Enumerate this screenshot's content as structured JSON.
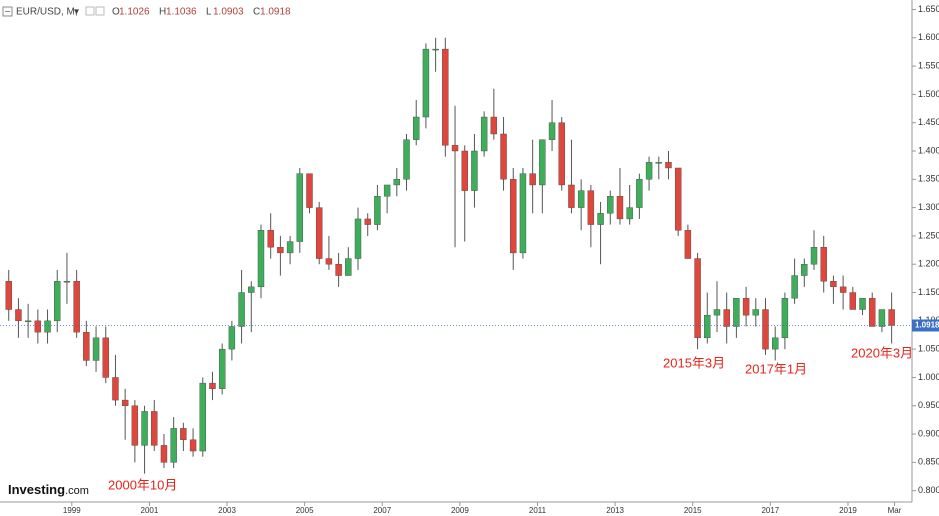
{
  "header": {
    "symbol": "EUR/USD, M,",
    "ohlc": [
      {
        "label": "O",
        "value": 1.1026
      },
      {
        "label": "H",
        "value": 1.1036
      },
      {
        "label": "L",
        "value": 1.0903
      },
      {
        "label": "C",
        "value": 1.0918
      }
    ]
  },
  "watermark": {
    "brand": "Investing",
    ".com": ".com"
  },
  "chart_data": {
    "type": "candlestick",
    "up_color": "#3fae5a",
    "down_color": "#e0473c",
    "xlim": [
      1997.15,
      2020.65
    ],
    "xticks": [
      1999,
      2001,
      2003,
      2005,
      2007,
      2009,
      2011,
      2013,
      2015,
      2017,
      2019,
      {
        "value": 2020.2,
        "label": "Mar"
      }
    ],
    "ylim": [
      0.78,
      1.6667
    ],
    "yticks": [
      {
        "value": 1.65,
        "label": "1.6500"
      },
      {
        "value": 1.6,
        "label": "1.6000"
      },
      {
        "value": 1.55,
        "label": "1.5500"
      },
      {
        "value": 1.5,
        "label": "1.5000"
      },
      {
        "value": 1.45,
        "label": "1.4500"
      },
      {
        "value": 1.4,
        "label": "1.4000"
      },
      {
        "value": 1.35,
        "label": "1.3500"
      },
      {
        "value": 1.3,
        "label": "1.3000"
      },
      {
        "value": 1.25,
        "label": "1.2500"
      },
      {
        "value": 1.2,
        "label": "1.2000"
      },
      {
        "value": 1.15,
        "label": "1.1500"
      },
      {
        "value": 1.1,
        "label": "1.1000"
      },
      {
        "value": 1.05,
        "label": "1.0500"
      },
      {
        "value": 1.0,
        "label": "1.0000"
      },
      {
        "value": 0.95,
        "label": "0.9500"
      },
      {
        "value": 0.9,
        "label": "0.9000"
      },
      {
        "value": 0.85,
        "label": "0.8500"
      },
      {
        "value": 0.8,
        "label": "0.8000"
      }
    ],
    "last_price": 1.0918,
    "x": [
      1997.375,
      1997.625,
      1997.875,
      1998.125,
      1998.375,
      1998.625,
      1998.875,
      1999.125,
      1999.375,
      1999.625,
      1999.875,
      2000.125,
      2000.375,
      2000.625,
      2000.875,
      2001.125,
      2001.375,
      2001.625,
      2001.875,
      2002.125,
      2002.375,
      2002.625,
      2002.875,
      2003.125,
      2003.375,
      2003.625,
      2003.875,
      2004.125,
      2004.375,
      2004.625,
      2004.875,
      2005.125,
      2005.375,
      2005.625,
      2005.875,
      2006.125,
      2006.375,
      2006.625,
      2006.875,
      2007.125,
      2007.375,
      2007.625,
      2007.875,
      2008.125,
      2008.375,
      2008.625,
      2008.875,
      2009.125,
      2009.375,
      2009.625,
      2009.875,
      2010.125,
      2010.375,
      2010.625,
      2010.875,
      2011.125,
      2011.375,
      2011.625,
      2011.875,
      2012.125,
      2012.375,
      2012.625,
      2012.875,
      2013.125,
      2013.375,
      2013.625,
      2013.875,
      2014.125,
      2014.375,
      2014.625,
      2014.875,
      2015.125,
      2015.375,
      2015.625,
      2015.875,
      2016.125,
      2016.375,
      2016.625,
      2016.875,
      2017.125,
      2017.375,
      2017.625,
      2017.875,
      2018.125,
      2018.375,
      2018.625,
      2018.875,
      2019.125,
      2019.375,
      2019.625,
      2019.875,
      2020.125
    ],
    "open": [
      1.17,
      1.12,
      1.1,
      1.1,
      1.08,
      1.1,
      1.17,
      1.17,
      1.08,
      1.03,
      1.07,
      1.0,
      0.96,
      0.95,
      0.88,
      0.94,
      0.88,
      0.85,
      0.91,
      0.89,
      0.87,
      0.99,
      0.98,
      1.05,
      1.09,
      1.15,
      1.16,
      1.26,
      1.23,
      1.22,
      1.24,
      1.36,
      1.3,
      1.21,
      1.2,
      1.18,
      1.21,
      1.28,
      1.27,
      1.32,
      1.34,
      1.35,
      1.42,
      1.46,
      1.58,
      1.58,
      1.41,
      1.4,
      1.33,
      1.4,
      1.46,
      1.43,
      1.35,
      1.22,
      1.36,
      1.34,
      1.42,
      1.45,
      1.34,
      1.3,
      1.33,
      1.27,
      1.29,
      1.32,
      1.28,
      1.3,
      1.35,
      1.38,
      1.38,
      1.37,
      1.26,
      1.21,
      1.07,
      1.11,
      1.12,
      1.09,
      1.14,
      1.11,
      1.12,
      1.05,
      1.07,
      1.14,
      1.18,
      1.2,
      1.23,
      1.17,
      1.16,
      1.15,
      1.12,
      1.14,
      1.09,
      1.12
    ],
    "high": [
      1.19,
      1.14,
      1.13,
      1.12,
      1.12,
      1.19,
      1.22,
      1.19,
      1.1,
      1.09,
      1.09,
      1.04,
      0.98,
      0.96,
      0.95,
      0.96,
      0.9,
      0.93,
      0.92,
      0.91,
      1.0,
      1.01,
      1.06,
      1.1,
      1.19,
      1.17,
      1.27,
      1.29,
      1.25,
      1.25,
      1.37,
      1.36,
      1.31,
      1.25,
      1.22,
      1.23,
      1.3,
      1.29,
      1.34,
      1.34,
      1.37,
      1.43,
      1.49,
      1.59,
      1.6,
      1.6,
      1.48,
      1.41,
      1.43,
      1.47,
      1.51,
      1.46,
      1.37,
      1.37,
      1.42,
      1.42,
      1.49,
      1.46,
      1.42,
      1.35,
      1.34,
      1.31,
      1.33,
      1.37,
      1.34,
      1.36,
      1.39,
      1.39,
      1.4,
      1.37,
      1.27,
      1.22,
      1.15,
      1.17,
      1.15,
      1.14,
      1.16,
      1.14,
      1.14,
      1.09,
      1.15,
      1.21,
      1.21,
      1.26,
      1.25,
      1.18,
      1.18,
      1.16,
      1.14,
      1.15,
      1.12,
      1.15
    ],
    "low": [
      1.1,
      1.07,
      1.07,
      1.06,
      1.06,
      1.08,
      1.13,
      1.07,
      1.02,
      1.01,
      0.99,
      0.95,
      0.89,
      0.85,
      0.83,
      0.87,
      0.84,
      0.84,
      0.87,
      0.86,
      0.86,
      0.96,
      0.97,
      1.03,
      1.06,
      1.08,
      1.14,
      1.21,
      1.18,
      1.2,
      1.22,
      1.29,
      1.2,
      1.19,
      1.16,
      1.18,
      1.19,
      1.25,
      1.26,
      1.29,
      1.32,
      1.33,
      1.41,
      1.44,
      1.54,
      1.39,
      1.23,
      1.24,
      1.3,
      1.39,
      1.42,
      1.33,
      1.19,
      1.21,
      1.29,
      1.29,
      1.4,
      1.33,
      1.29,
      1.26,
      1.23,
      1.2,
      1.27,
      1.27,
      1.27,
      1.28,
      1.33,
      1.35,
      1.35,
      1.25,
      1.21,
      1.05,
      1.06,
      1.08,
      1.06,
      1.07,
      1.09,
      1.09,
      1.04,
      1.03,
      1.05,
      1.13,
      1.16,
      1.19,
      1.15,
      1.13,
      1.12,
      1.12,
      1.11,
      1.09,
      1.08,
      1.06
    ],
    "close": [
      1.12,
      1.1,
      1.1,
      1.08,
      1.1,
      1.17,
      1.17,
      1.08,
      1.03,
      1.07,
      1.0,
      0.96,
      0.95,
      0.88,
      0.94,
      0.88,
      0.85,
      0.91,
      0.89,
      0.87,
      0.99,
      0.98,
      1.05,
      1.09,
      1.15,
      1.16,
      1.26,
      1.23,
      1.22,
      1.24,
      1.36,
      1.3,
      1.21,
      1.2,
      1.18,
      1.21,
      1.28,
      1.27,
      1.32,
      1.34,
      1.35,
      1.42,
      1.46,
      1.58,
      1.58,
      1.41,
      1.4,
      1.33,
      1.4,
      1.46,
      1.43,
      1.35,
      1.22,
      1.36,
      1.34,
      1.42,
      1.45,
      1.34,
      1.3,
      1.33,
      1.27,
      1.29,
      1.32,
      1.28,
      1.3,
      1.35,
      1.38,
      1.38,
      1.37,
      1.26,
      1.21,
      1.07,
      1.11,
      1.12,
      1.09,
      1.14,
      1.11,
      1.12,
      1.05,
      1.07,
      1.14,
      1.18,
      1.2,
      1.23,
      1.17,
      1.16,
      1.15,
      1.12,
      1.14,
      1.09,
      1.12,
      1.0918
    ],
    "annotations": [
      "2000年10月",
      "2015年3月",
      "2017年1月",
      "2020年3月"
    ]
  }
}
